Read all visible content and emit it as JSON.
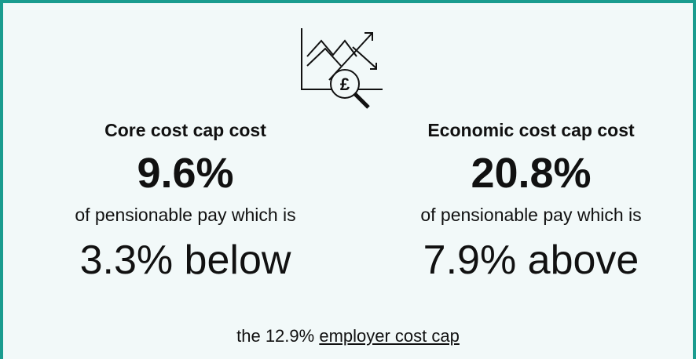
{
  "columns": [
    {
      "heading": "Core cost cap cost",
      "figure": "9.6%",
      "subtext": "of pensionable pay which is",
      "comparison": "3.3% below"
    },
    {
      "heading": "Economic cost cap cost",
      "figure": "20.8%",
      "subtext": "of pensionable pay which is",
      "comparison": "7.9% above"
    }
  ],
  "footer": {
    "prefix": "the 12.9%",
    "link": "employer cost cap"
  }
}
